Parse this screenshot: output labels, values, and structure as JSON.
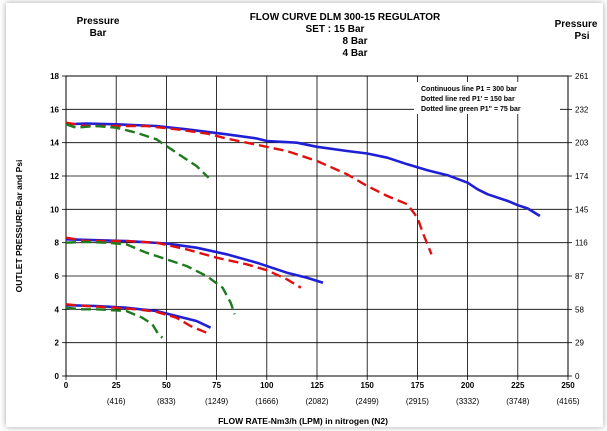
{
  "chart_data": {
    "type": "line",
    "title": "FLOW CURVE DLM 300-15 REGULATOR",
    "subtitle_lines": [
      "SET : 15 Bar",
      "8 Bar",
      "4 Bar"
    ],
    "left_axis_title": [
      "Pressure",
      "Bar"
    ],
    "right_axis_title": [
      "Pressure",
      "Psi"
    ],
    "ylabel": "OUTLET PRESSURE-Bar and Psi",
    "xlabel": "FLOW RATE-Nm3/h (LPM) in nitrogen (N2)",
    "xlim": [
      0,
      250
    ],
    "ylim": [
      0,
      18
    ],
    "x_ticks": [
      "0",
      "25",
      "50",
      "75",
      "100",
      "125",
      "150",
      "175",
      "200",
      "225",
      "250"
    ],
    "x_lpm_ticks": [
      "(416)",
      "(833)",
      "(1249)",
      "(1666)",
      "(2082)",
      "(2499)",
      "(2915)",
      "(3332)",
      "(3748)",
      "(4165)"
    ],
    "y_ticks": [
      "0",
      "2",
      "4",
      "6",
      "8",
      "10",
      "12",
      "14",
      "16",
      "18"
    ],
    "y_psi_ticks": [
      "0",
      "29",
      "58",
      "87",
      "116",
      "145",
      "174",
      "203",
      "232",
      "261"
    ],
    "grid": true,
    "legend": {
      "position": "top-right",
      "entries": [
        "Continuous line P1 = 300 bar",
        "Dotted line red  P1' = 150 bar",
        "Dotted line green P1\" = 75 bar"
      ]
    },
    "colors": {
      "blue": "#1f1fd6",
      "red": "#e01010",
      "green": "#1f7a1f"
    },
    "series": [
      {
        "set": "15",
        "color": "blue",
        "style": "solid",
        "points": [
          [
            0,
            15.1
          ],
          [
            10,
            15.15
          ],
          [
            25,
            15.1
          ],
          [
            45,
            15.0
          ],
          [
            60,
            14.8
          ],
          [
            80,
            14.5
          ],
          [
            95,
            14.25
          ],
          [
            100,
            14.1
          ],
          [
            115,
            14.0
          ],
          [
            125,
            13.75
          ],
          [
            140,
            13.5
          ],
          [
            150,
            13.35
          ],
          [
            160,
            13.1
          ],
          [
            170,
            12.7
          ],
          [
            180,
            12.35
          ],
          [
            190,
            12.05
          ],
          [
            200,
            11.6
          ],
          [
            205,
            11.2
          ],
          [
            210,
            10.9
          ],
          [
            220,
            10.5
          ],
          [
            225,
            10.25
          ],
          [
            230,
            10.05
          ],
          [
            236,
            9.6
          ]
        ]
      },
      {
        "set": "15",
        "color": "red",
        "style": "dashed",
        "points": [
          [
            0,
            15.2
          ],
          [
            10,
            15.0
          ],
          [
            25,
            15.0
          ],
          [
            40,
            15.0
          ],
          [
            55,
            14.8
          ],
          [
            70,
            14.55
          ],
          [
            80,
            14.25
          ],
          [
            90,
            14.0
          ],
          [
            110,
            13.5
          ],
          [
            125,
            12.9
          ],
          [
            140,
            12.1
          ],
          [
            150,
            11.4
          ],
          [
            160,
            10.8
          ],
          [
            170,
            10.3
          ],
          [
            175,
            9.5
          ],
          [
            178,
            8.5
          ],
          [
            182,
            7.3
          ]
        ]
      },
      {
        "set": "15",
        "color": "green",
        "style": "dashed",
        "points": [
          [
            0,
            15.1
          ],
          [
            5,
            14.9
          ],
          [
            15,
            15.0
          ],
          [
            25,
            14.9
          ],
          [
            35,
            14.6
          ],
          [
            45,
            14.2
          ],
          [
            55,
            13.4
          ],
          [
            65,
            12.6
          ],
          [
            71,
            11.9
          ]
        ]
      },
      {
        "set": "8",
        "color": "blue",
        "style": "solid",
        "points": [
          [
            0,
            8.2
          ],
          [
            15,
            8.15
          ],
          [
            30,
            8.1
          ],
          [
            50,
            7.95
          ],
          [
            65,
            7.7
          ],
          [
            80,
            7.3
          ],
          [
            95,
            6.8
          ],
          [
            110,
            6.2
          ],
          [
            120,
            5.9
          ],
          [
            128,
            5.6
          ]
        ]
      },
      {
        "set": "8",
        "color": "red",
        "style": "dashed",
        "points": [
          [
            0,
            8.3
          ],
          [
            10,
            8.1
          ],
          [
            30,
            8.1
          ],
          [
            45,
            8.0
          ],
          [
            60,
            7.6
          ],
          [
            75,
            7.1
          ],
          [
            90,
            6.7
          ],
          [
            100,
            6.35
          ],
          [
            110,
            5.8
          ],
          [
            117,
            5.3
          ]
        ]
      },
      {
        "set": "8",
        "color": "green",
        "style": "dashed",
        "points": [
          [
            0,
            8.0
          ],
          [
            10,
            8.05
          ],
          [
            20,
            8.0
          ],
          [
            30,
            7.9
          ],
          [
            40,
            7.4
          ],
          [
            50,
            7.0
          ],
          [
            60,
            6.6
          ],
          [
            70,
            6.0
          ],
          [
            78,
            5.3
          ],
          [
            82,
            4.4
          ],
          [
            84,
            3.7
          ]
        ]
      },
      {
        "set": "4",
        "color": "blue",
        "style": "solid",
        "points": [
          [
            0,
            4.25
          ],
          [
            15,
            4.2
          ],
          [
            30,
            4.1
          ],
          [
            45,
            3.9
          ],
          [
            55,
            3.6
          ],
          [
            65,
            3.3
          ],
          [
            72,
            2.9
          ]
        ]
      },
      {
        "set": "4",
        "color": "red",
        "style": "dashed",
        "points": [
          [
            0,
            4.3
          ],
          [
            10,
            4.2
          ],
          [
            25,
            4.1
          ],
          [
            35,
            4.0
          ],
          [
            45,
            3.85
          ],
          [
            55,
            3.5
          ],
          [
            62,
            3.0
          ],
          [
            70,
            2.6
          ]
        ]
      },
      {
        "set": "4",
        "color": "green",
        "style": "dashed",
        "points": [
          [
            0,
            4.1
          ],
          [
            8,
            4.0
          ],
          [
            15,
            4.0
          ],
          [
            30,
            3.9
          ],
          [
            38,
            3.5
          ],
          [
            43,
            3.1
          ],
          [
            46,
            2.5
          ],
          [
            48,
            2.3
          ]
        ]
      }
    ]
  }
}
